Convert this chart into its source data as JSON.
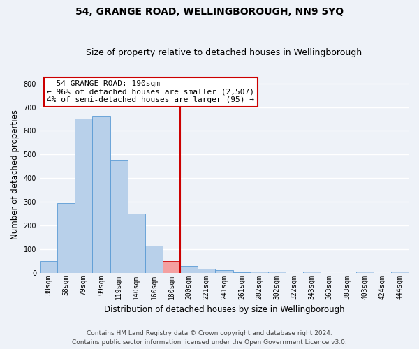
{
  "title": "54, GRANGE ROAD, WELLINGBOROUGH, NN9 5YQ",
  "subtitle": "Size of property relative to detached houses in Wellingborough",
  "xlabel": "Distribution of detached houses by size in Wellingborough",
  "ylabel": "Number of detached properties",
  "bar_labels": [
    "38sqm",
    "58sqm",
    "79sqm",
    "99sqm",
    "119sqm",
    "140sqm",
    "160sqm",
    "180sqm",
    "200sqm",
    "221sqm",
    "241sqm",
    "261sqm",
    "282sqm",
    "302sqm",
    "322sqm",
    "343sqm",
    "363sqm",
    "383sqm",
    "403sqm",
    "424sqm",
    "444sqm"
  ],
  "bar_values": [
    48,
    293,
    651,
    664,
    478,
    251,
    113,
    48,
    28,
    16,
    10,
    2,
    5,
    4,
    0,
    4,
    0,
    0,
    4,
    0,
    5
  ],
  "bar_color": "#b8d0ea",
  "bar_edge_color": "#5b9bd5",
  "highlight_bar_index": 7,
  "highlight_bar_color": "#f4a0a0",
  "highlight_bar_edge_color": "#cc0000",
  "vline_x_index": 8,
  "vline_color": "#cc0000",
  "annotation_title": "54 GRANGE ROAD: 190sqm",
  "annotation_line1": "← 96% of detached houses are smaller (2,507)",
  "annotation_line2": "4% of semi-detached houses are larger (95) →",
  "annotation_box_color": "#ffffff",
  "annotation_box_edge_color": "#cc0000",
  "ylim": [
    0,
    830
  ],
  "yticks": [
    0,
    100,
    200,
    300,
    400,
    500,
    600,
    700,
    800
  ],
  "footer1": "Contains HM Land Registry data © Crown copyright and database right 2024.",
  "footer2": "Contains public sector information licensed under the Open Government Licence v3.0.",
  "background_color": "#eef2f8",
  "grid_color": "#ffffff",
  "title_fontsize": 10,
  "subtitle_fontsize": 9,
  "axis_label_fontsize": 8.5,
  "tick_fontsize": 7,
  "annotation_fontsize": 8,
  "footer_fontsize": 6.5
}
